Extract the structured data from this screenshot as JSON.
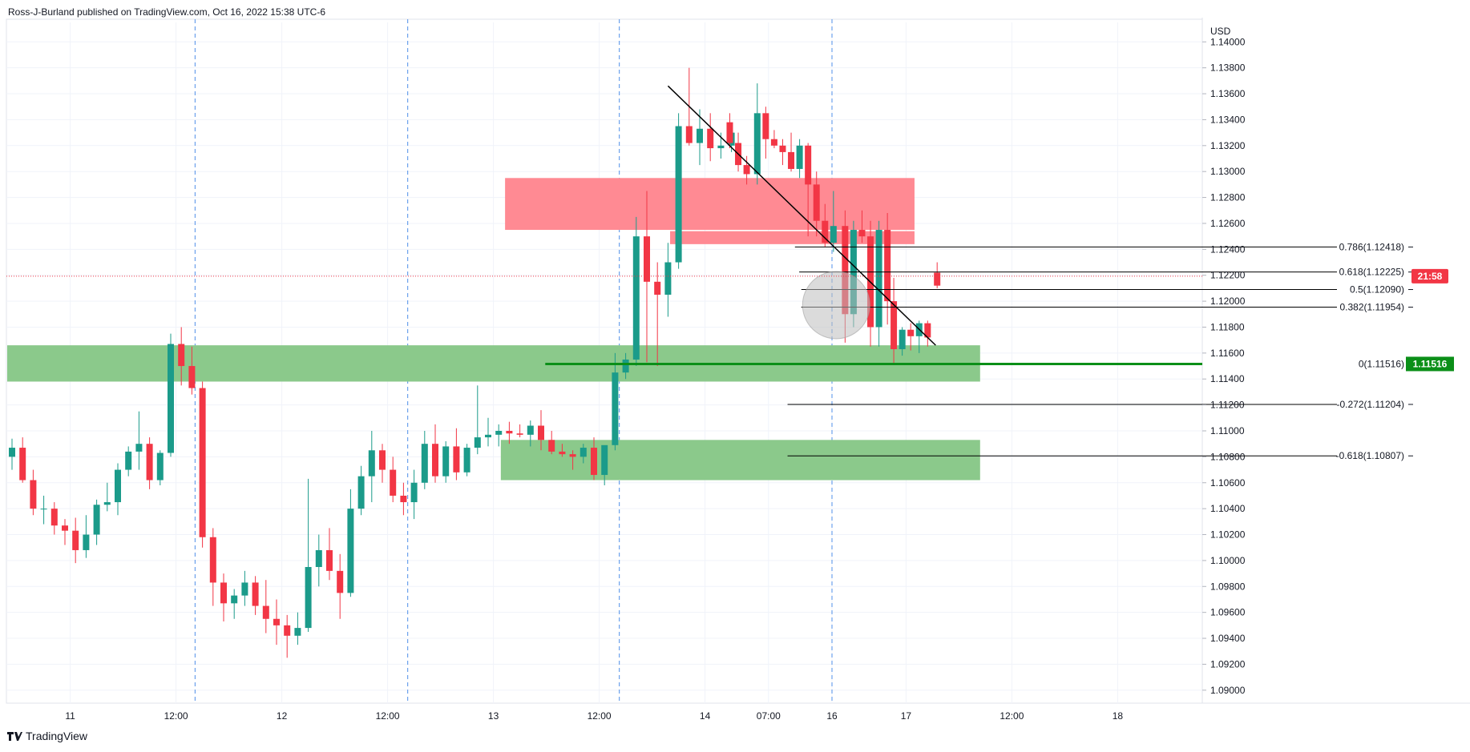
{
  "header": {
    "text": "Ross-J-Burland published on TradingView.com, Oct 16, 2022 15:38 UTC-6"
  },
  "footer": {
    "brand": "TradingView"
  },
  "colors": {
    "up": "#26a69a",
    "up_body": "#1b9b8a",
    "down": "#f23645",
    "support_zone": "#8bc98b",
    "resistance_zone": "#ff8a93",
    "support_line": "#0b8f18",
    "grid": "#f0f3fa",
    "session_line": "#4f8fe8"
  },
  "chart_data": {
    "type": "candlestick",
    "currency_label": "USD",
    "ylim": [
      1.089,
      1.1415
    ],
    "y_ticks": [
      "1.14000",
      "1.13800",
      "1.13600",
      "1.13400",
      "1.13200",
      "1.13000",
      "1.12800",
      "1.12600",
      "1.12400",
      "1.12200",
      "1.12000",
      "1.11800",
      "1.11600",
      "1.11400",
      "1.11200",
      "1.11000",
      "1.10800",
      "1.10600",
      "1.10400",
      "1.10200",
      "1.10000",
      "1.09800",
      "1.09600",
      "1.09400",
      "1.09200",
      "1.09000"
    ],
    "x_tick_labels": [
      {
        "label": "11",
        "index": 5.5
      },
      {
        "label": "12:00",
        "index": 15.5
      },
      {
        "label": "12",
        "index": 25.5
      },
      {
        "label": "12:00",
        "index": 35.5
      },
      {
        "label": "13",
        "index": 45.5
      },
      {
        "label": "12:00",
        "index": 55.5
      },
      {
        "label": "14",
        "index": 65.5
      },
      {
        "label": "07:00",
        "index": 71.5
      },
      {
        "label": "16",
        "index": 77.5
      },
      {
        "label": "17",
        "index": 84.5
      },
      {
        "label": "12:00",
        "index": 94.5
      },
      {
        "label": "18",
        "index": 104.5
      }
    ],
    "session_lines_index": [
      17.3,
      37.4,
      57.4,
      77.5
    ],
    "candles": [
      [
        1.108,
        1.1094,
        1.107,
        1.1087
      ],
      [
        1.1087,
        1.1095,
        1.106,
        1.1062
      ],
      [
        1.1062,
        1.107,
        1.1035,
        1.104
      ],
      [
        1.104,
        1.105,
        1.1028,
        1.104
      ],
      [
        1.104,
        1.1045,
        1.102,
        1.1027
      ],
      [
        1.1027,
        1.1032,
        1.1012,
        1.1023
      ],
      [
        1.1023,
        1.1033,
        1.0998,
        1.1008
      ],
      [
        1.1008,
        1.1035,
        1.1002,
        1.102
      ],
      [
        1.102,
        1.1047,
        1.1012,
        1.1043
      ],
      [
        1.1043,
        1.106,
        1.1038,
        1.1045
      ],
      [
        1.1045,
        1.1075,
        1.1035,
        1.107
      ],
      [
        1.107,
        1.1088,
        1.1065,
        1.1084
      ],
      [
        1.1084,
        1.1115,
        1.107,
        1.109
      ],
      [
        1.109,
        1.1095,
        1.1055,
        1.1062
      ],
      [
        1.1062,
        1.1085,
        1.1058,
        1.1083
      ],
      [
        1.1083,
        1.1175,
        1.108,
        1.1167
      ],
      [
        1.1167,
        1.118,
        1.1135,
        1.115
      ],
      [
        1.115,
        1.1165,
        1.1128,
        1.1133
      ],
      [
        1.1133,
        1.1138,
        1.101,
        1.1018
      ],
      [
        1.1018,
        1.1025,
        1.0965,
        1.0983
      ],
      [
        1.0983,
        1.099,
        1.0953,
        1.0967
      ],
      [
        1.0967,
        1.0978,
        1.0955,
        1.0973
      ],
      [
        1.0973,
        1.0992,
        1.0965,
        1.0983
      ],
      [
        1.0983,
        1.0988,
        1.0958,
        1.0965
      ],
      [
        1.0965,
        1.0985,
        1.0944,
        1.0955
      ],
      [
        1.0955,
        1.097,
        1.0935,
        1.095
      ],
      [
        1.095,
        1.0958,
        1.0925,
        1.0942
      ],
      [
        1.0942,
        1.096,
        1.0935,
        1.0948
      ],
      [
        1.0948,
        1.1063,
        1.0945,
        1.0995
      ],
      [
        1.0995,
        1.102,
        1.098,
        1.1008
      ],
      [
        1.1008,
        1.1025,
        1.0985,
        1.0992
      ],
      [
        1.0992,
        1.1005,
        1.0955,
        1.0975
      ],
      [
        1.0975,
        1.1055,
        1.0972,
        1.104
      ],
      [
        1.104,
        1.1073,
        1.1035,
        1.1065
      ],
      [
        1.1065,
        1.11,
        1.1045,
        1.1085
      ],
      [
        1.1085,
        1.109,
        1.106,
        1.107
      ],
      [
        1.107,
        1.108,
        1.1045,
        1.105
      ],
      [
        1.105,
        1.106,
        1.1035,
        1.1045
      ],
      [
        1.1045,
        1.107,
        1.1032,
        1.106
      ],
      [
        1.106,
        1.11,
        1.1055,
        1.109
      ],
      [
        1.109,
        1.1105,
        1.106,
        1.1065
      ],
      [
        1.1065,
        1.1092,
        1.106,
        1.1088
      ],
      [
        1.1088,
        1.1102,
        1.1062,
        1.1068
      ],
      [
        1.1068,
        1.109,
        1.1065,
        1.1087
      ],
      [
        1.1087,
        1.1135,
        1.1082,
        1.1095
      ],
      [
        1.1095,
        1.111,
        1.1088,
        1.1097
      ],
      [
        1.1097,
        1.1105,
        1.1088,
        1.11
      ],
      [
        1.11,
        1.1107,
        1.109,
        1.1098
      ],
      [
        1.1098,
        1.1105,
        1.1095,
        1.1097
      ],
      [
        1.1097,
        1.1108,
        1.1088,
        1.1104
      ],
      [
        1.1104,
        1.1116,
        1.1085,
        1.1093
      ],
      [
        1.1093,
        1.11,
        1.1082,
        1.1084
      ],
      [
        1.1084,
        1.109,
        1.108,
        1.1082
      ],
      [
        1.1082,
        1.1085,
        1.107,
        1.108
      ],
      [
        1.108,
        1.109,
        1.1075,
        1.1087
      ],
      [
        1.1087,
        1.1095,
        1.1062,
        1.1066
      ],
      [
        1.1066,
        1.1087,
        1.1058,
        1.1089
      ],
      [
        1.1089,
        1.116,
        1.1085,
        1.1145
      ],
      [
        1.1145,
        1.116,
        1.114,
        1.1155
      ],
      [
        1.1155,
        1.1265,
        1.115,
        1.125
      ],
      [
        1.125,
        1.1285,
        1.1153,
        1.1215
      ],
      [
        1.1215,
        1.123,
        1.115,
        1.1205
      ],
      [
        1.1205,
        1.1245,
        1.1188,
        1.123
      ],
      [
        1.123,
        1.1345,
        1.1225,
        1.1335
      ],
      [
        1.1335,
        1.138,
        1.132,
        1.1322
      ],
      [
        1.1322,
        1.1348,
        1.1305,
        1.1333
      ],
      [
        1.1333,
        1.1345,
        1.1308,
        1.1318
      ],
      [
        1.1318,
        1.133,
        1.131,
        1.132
      ],
      [
        1.132,
        1.1335,
        1.1315,
        1.133
      ]
    ],
    "annotations": {
      "current_price": "1.11516",
      "time_to_close": "21:58",
      "fib_levels": [
        {
          "label": "0.786(1.12418)",
          "price": 1.12418
        },
        {
          "label": "0.618(1.12225)",
          "price": 1.12225
        },
        {
          "label": "0.5(1.12090)",
          "price": 1.1209
        },
        {
          "label": "0.382(1.11954)",
          "price": 1.11954
        },
        {
          "label": "0(1.11516)",
          "price": 1.11516
        },
        {
          "label": "-0.272(1.11204)",
          "price": 1.11204
        },
        {
          "label": "-0.618(1.10807)",
          "price": 1.10807
        }
      ],
      "resistance_zones": [
        [
          1.1255,
          1.1295
        ],
        [
          1.1244,
          1.1254
        ]
      ],
      "support_zones": [
        [
          1.1138,
          1.1166
        ],
        [
          1.1062,
          1.1093
        ]
      ],
      "support_level": 1.11516,
      "trendline": [
        [
          1.1366
        ],
        [
          1.1166
        ]
      ]
    }
  }
}
